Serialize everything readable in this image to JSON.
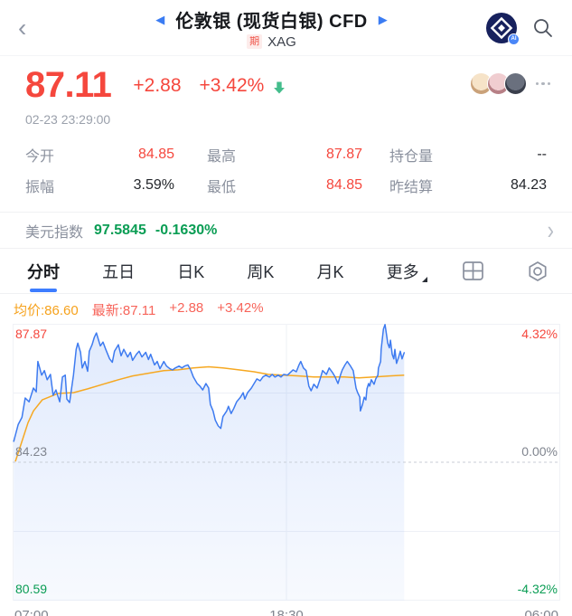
{
  "header": {
    "title": "伦敦银 (现货白银) CFD",
    "badge": "期",
    "symbol": "XAG"
  },
  "icons": {
    "back": "‹",
    "prev": "◀",
    "next": "▶",
    "usd_chevron": "›",
    "logo": "ccb-ai-logo",
    "search": "search-icon",
    "price_arrow": "green-down-arrow",
    "grid": "grid-layout-icon",
    "settings": "settings-hexagon-icon",
    "more": "more-dots-icon"
  },
  "quote": {
    "price": "87.11",
    "change": "+2.88",
    "change_pct": "+3.42%",
    "timestamp": "02-23 23:29:00"
  },
  "stats": {
    "rows": [
      [
        {
          "label": "今开",
          "value": "84.85",
          "cls": "v-red"
        },
        {
          "label": "最高",
          "value": "87.87",
          "cls": "v-red"
        },
        {
          "label": "持仓量",
          "value": "--",
          "cls": "v-dark"
        }
      ],
      [
        {
          "label": "振幅",
          "value": "3.59%",
          "cls": "v-dark"
        },
        {
          "label": "最低",
          "value": "84.85",
          "cls": "v-red"
        },
        {
          "label": "昨结算",
          "value": "84.23",
          "cls": "v-dark"
        }
      ]
    ]
  },
  "usd": {
    "label": "美元指数",
    "value": "97.5845",
    "change": "-0.1630%"
  },
  "tabs": [
    {
      "label": "分时",
      "active": true
    },
    {
      "label": "五日"
    },
    {
      "label": "日K"
    },
    {
      "label": "周K"
    },
    {
      "label": "月K"
    },
    {
      "label": "更多",
      "dropdown": true
    }
  ],
  "legend": {
    "avg": "均价:86.60",
    "latest": "最新:87.11",
    "change": "+2.88",
    "change_pct": "+3.42%"
  },
  "chart_data": {
    "type": "line",
    "title": "分时 intraday chart",
    "ylim": [
      80.59,
      87.87
    ],
    "baseline": 84.23,
    "avg_price": 86.6,
    "latest": 87.11,
    "y_left": [
      "87.87",
      "84.23",
      "80.59"
    ],
    "y_right": [
      "4.32%",
      "0.00%",
      "-4.32%"
    ],
    "x_ticks": [
      "07:00",
      "18:30",
      "06:00"
    ],
    "grid": {
      "h": [
        0.25,
        0.75
      ],
      "v": [
        0.5
      ]
    },
    "series": [
      {
        "name": "price",
        "color": "#3e7bf0",
        "points": [
          [
            0.002,
            84.78
          ],
          [
            0.01,
            85.22
          ],
          [
            0.017,
            85.41
          ],
          [
            0.023,
            85.92
          ],
          [
            0.03,
            85.82
          ],
          [
            0.038,
            86.18
          ],
          [
            0.043,
            86.08
          ],
          [
            0.046,
            86.88
          ],
          [
            0.053,
            86.52
          ],
          [
            0.058,
            86.64
          ],
          [
            0.063,
            86.4
          ],
          [
            0.069,
            86.54
          ],
          [
            0.074,
            85.99
          ],
          [
            0.079,
            86.13
          ],
          [
            0.086,
            85.82
          ],
          [
            0.091,
            86.47
          ],
          [
            0.096,
            86.52
          ],
          [
            0.099,
            85.89
          ],
          [
            0.104,
            85.8
          ],
          [
            0.111,
            86.52
          ],
          [
            0.116,
            87.2
          ],
          [
            0.119,
            87.36
          ],
          [
            0.124,
            87.12
          ],
          [
            0.127,
            86.71
          ],
          [
            0.132,
            86.88
          ],
          [
            0.137,
            86.62
          ],
          [
            0.14,
            87.15
          ],
          [
            0.145,
            87.32
          ],
          [
            0.149,
            87.51
          ],
          [
            0.153,
            87.63
          ],
          [
            0.16,
            87.29
          ],
          [
            0.165,
            87.39
          ],
          [
            0.17,
            87.2
          ],
          [
            0.177,
            86.95
          ],
          [
            0.182,
            86.86
          ],
          [
            0.186,
            87.15
          ],
          [
            0.193,
            87.32
          ],
          [
            0.198,
            87.03
          ],
          [
            0.203,
            87.2
          ],
          [
            0.21,
            87.0
          ],
          [
            0.215,
            87.12
          ],
          [
            0.219,
            86.91
          ],
          [
            0.226,
            87.07
          ],
          [
            0.231,
            87.15
          ],
          [
            0.236,
            87.0
          ],
          [
            0.243,
            87.12
          ],
          [
            0.248,
            86.93
          ],
          [
            0.252,
            87.07
          ],
          [
            0.259,
            86.79
          ],
          [
            0.264,
            86.88
          ],
          [
            0.269,
            86.69
          ],
          [
            0.276,
            86.88
          ],
          [
            0.281,
            86.76
          ],
          [
            0.287,
            86.69
          ],
          [
            0.292,
            86.66
          ],
          [
            0.297,
            86.71
          ],
          [
            0.304,
            86.76
          ],
          [
            0.309,
            86.71
          ],
          [
            0.314,
            86.76
          ],
          [
            0.32,
            86.79
          ],
          [
            0.325,
            86.66
          ],
          [
            0.33,
            86.47
          ],
          [
            0.337,
            86.3
          ],
          [
            0.342,
            86.23
          ],
          [
            0.347,
            86.13
          ],
          [
            0.353,
            86.3
          ],
          [
            0.358,
            86.18
          ],
          [
            0.361,
            85.75
          ],
          [
            0.366,
            85.58
          ],
          [
            0.37,
            85.34
          ],
          [
            0.375,
            85.19
          ],
          [
            0.38,
            85.12
          ],
          [
            0.384,
            85.43
          ],
          [
            0.391,
            85.58
          ],
          [
            0.394,
            85.7
          ],
          [
            0.399,
            85.51
          ],
          [
            0.404,
            85.65
          ],
          [
            0.409,
            85.82
          ],
          [
            0.416,
            85.94
          ],
          [
            0.421,
            86.06
          ],
          [
            0.424,
            85.89
          ],
          [
            0.429,
            86.06
          ],
          [
            0.436,
            86.18
          ],
          [
            0.441,
            86.3
          ],
          [
            0.446,
            86.42
          ],
          [
            0.452,
            86.37
          ],
          [
            0.457,
            86.47
          ],
          [
            0.462,
            86.52
          ],
          [
            0.469,
            86.47
          ],
          [
            0.474,
            86.54
          ],
          [
            0.479,
            86.47
          ],
          [
            0.485,
            86.52
          ],
          [
            0.49,
            86.47
          ],
          [
            0.495,
            86.54
          ],
          [
            0.502,
            86.52
          ],
          [
            0.507,
            86.59
          ],
          [
            0.512,
            86.66
          ],
          [
            0.518,
            86.61
          ],
          [
            0.523,
            86.79
          ],
          [
            0.526,
            86.88
          ],
          [
            0.531,
            86.71
          ],
          [
            0.536,
            86.64
          ],
          [
            0.541,
            86.23
          ],
          [
            0.545,
            86.11
          ],
          [
            0.55,
            86.28
          ],
          [
            0.556,
            86.18
          ],
          [
            0.561,
            86.4
          ],
          [
            0.566,
            86.64
          ],
          [
            0.573,
            86.54
          ],
          [
            0.578,
            86.71
          ],
          [
            0.584,
            86.59
          ],
          [
            0.589,
            86.47
          ],
          [
            0.594,
            86.3
          ],
          [
            0.599,
            86.54
          ],
          [
            0.602,
            86.66
          ],
          [
            0.607,
            86.79
          ],
          [
            0.611,
            86.88
          ],
          [
            0.617,
            86.76
          ],
          [
            0.622,
            86.64
          ],
          [
            0.627,
            86.18
          ],
          [
            0.63,
            86.06
          ],
          [
            0.634,
            85.94
          ],
          [
            0.635,
            85.58
          ],
          [
            0.639,
            85.75
          ],
          [
            0.642,
            85.94
          ],
          [
            0.645,
            85.87
          ],
          [
            0.647,
            86.16
          ],
          [
            0.65,
            86.3
          ],
          [
            0.652,
            86.23
          ],
          [
            0.655,
            86.4
          ],
          [
            0.66,
            86.28
          ],
          [
            0.663,
            86.42
          ],
          [
            0.667,
            86.52
          ],
          [
            0.668,
            86.71
          ],
          [
            0.672,
            86.88
          ],
          [
            0.673,
            87.2
          ],
          [
            0.677,
            87.73
          ],
          [
            0.68,
            87.85
          ],
          [
            0.683,
            87.56
          ],
          [
            0.685,
            87.36
          ],
          [
            0.688,
            87.24
          ],
          [
            0.69,
            87.44
          ],
          [
            0.693,
            87.07
          ],
          [
            0.696,
            86.95
          ],
          [
            0.698,
            87.2
          ],
          [
            0.701,
            86.83
          ],
          [
            0.705,
            87.0
          ],
          [
            0.708,
            87.15
          ],
          [
            0.711,
            86.95
          ],
          [
            0.715,
            87.11
          ]
        ]
      },
      {
        "name": "avg",
        "color": "#f6a821",
        "points": [
          [
            0.005,
            84.25
          ],
          [
            0.017,
            84.78
          ],
          [
            0.028,
            85.27
          ],
          [
            0.038,
            85.58
          ],
          [
            0.054,
            85.87
          ],
          [
            0.083,
            86.04
          ],
          [
            0.111,
            86.06
          ],
          [
            0.137,
            86.16
          ],
          [
            0.165,
            86.28
          ],
          [
            0.193,
            86.4
          ],
          [
            0.219,
            86.5
          ],
          [
            0.248,
            86.57
          ],
          [
            0.276,
            86.64
          ],
          [
            0.302,
            86.66
          ],
          [
            0.33,
            86.71
          ],
          [
            0.358,
            86.74
          ],
          [
            0.384,
            86.71
          ],
          [
            0.413,
            86.66
          ],
          [
            0.441,
            86.61
          ],
          [
            0.467,
            86.54
          ],
          [
            0.495,
            86.52
          ],
          [
            0.523,
            86.5
          ],
          [
            0.55,
            86.47
          ],
          [
            0.578,
            86.47
          ],
          [
            0.606,
            86.47
          ],
          [
            0.632,
            86.45
          ],
          [
            0.66,
            86.47
          ],
          [
            0.688,
            86.5
          ],
          [
            0.715,
            86.52
          ]
        ]
      }
    ]
  }
}
